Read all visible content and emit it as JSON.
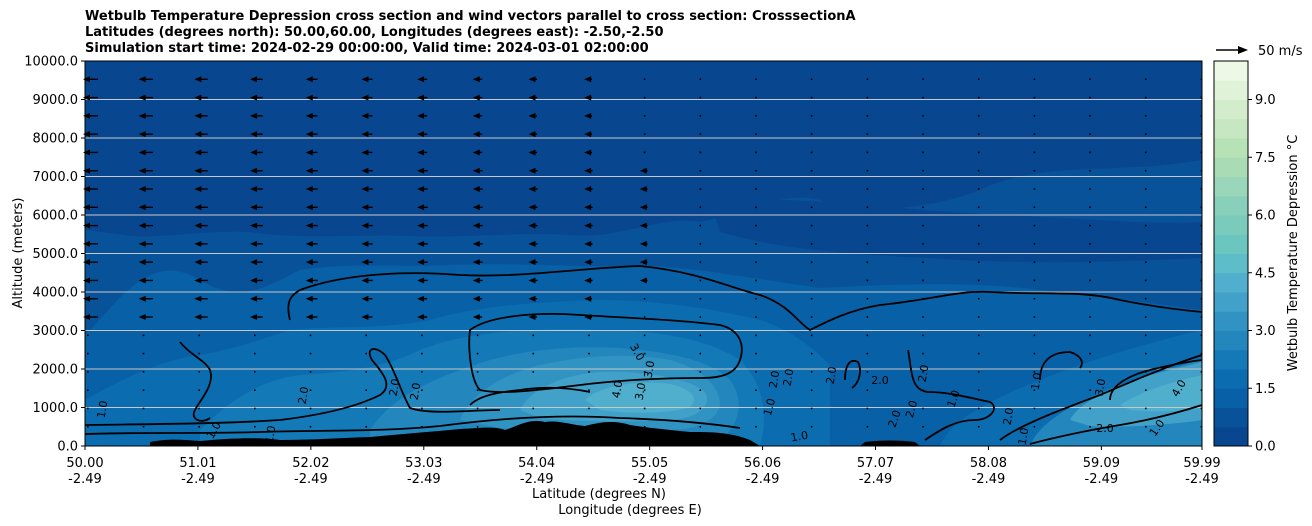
{
  "titles": {
    "line1": "Wetbulb Temperature Depression cross section and wind vectors parallel to cross section: CrosssectionA",
    "line2": "Latitudes (degrees north): 50.00,60.00, Longitudes (degrees east): -2.50,-2.50",
    "line3": "Simulation start time: 2024-02-29 00:00:00, Valid time: 2024-03-01 02:00:00"
  },
  "chart_data": {
    "type": "heatmap",
    "subtype": "filled contour cross section with line contours and wind vectors",
    "ylabel": "Altitude (meters)",
    "xlabel_line1": "Latitude (degrees N)",
    "xlabel_line2": "Longitude (degrees E)",
    "ylim": [
      0,
      10000
    ],
    "xlim": [
      50.0,
      59.99
    ],
    "y_ticks": [
      0,
      1000,
      2000,
      3000,
      4000,
      5000,
      6000,
      7000,
      8000,
      9000,
      10000
    ],
    "y_tick_labels": [
      "0.0",
      "1000.0",
      "2000.0",
      "3000.0",
      "4000.0",
      "5000.0",
      "6000.0",
      "7000.0",
      "8000.0",
      "9000.0",
      "10000.0"
    ],
    "x_ticks": [
      50.0,
      51.01,
      52.02,
      53.03,
      54.04,
      55.05,
      56.06,
      57.07,
      58.08,
      59.09,
      59.99
    ],
    "x_tick_labels_lat": [
      "50.00",
      "51.01",
      "52.02",
      "53.03",
      "54.04",
      "55.05",
      "56.06",
      "57.07",
      "58.08",
      "59.09",
      "59.99"
    ],
    "x_tick_labels_lon": [
      "-2.49",
      "-2.49",
      "-2.49",
      "-2.49",
      "-2.49",
      "-2.49",
      "-2.49",
      "-2.49",
      "-2.49",
      "-2.49",
      "-2.49"
    ],
    "horizontal_grid": true,
    "colorbar": {
      "label": "Wetbulb Temperature Depression °C",
      "min": 0.0,
      "max": 10.0,
      "levels": 20,
      "tick_values": [
        0.0,
        1.5,
        3.0,
        4.5,
        6.0,
        7.5,
        9.0
      ],
      "tick_labels": [
        "0.0",
        "1.5",
        "3.0",
        "4.5",
        "6.0",
        "7.5",
        "9.0"
      ],
      "colors": [
        "#08478f",
        "#08529a",
        "#0860a6",
        "#0b6db0",
        "#1479b7",
        "#2386bd",
        "#3193c2",
        "#42a1c8",
        "#4fafcd",
        "#5dbdc8",
        "#6cc6c0",
        "#7bcbbd",
        "#89d0ba",
        "#9ad6ba",
        "#a9dcb5",
        "#b7e2b6",
        "#c6e7c1",
        "#d3edcc",
        "#e0f3d9",
        "#edf8e6"
      ]
    },
    "contour_line_labels": [
      "1.0",
      "1.0",
      "1.0",
      "1.0",
      "1.0",
      "1.0",
      "1.0",
      "1.0",
      "1.0",
      "2.0",
      "2.0",
      "2.0",
      "2.0",
      "2.0",
      "2.0",
      "2.0",
      "2.0",
      "2.0",
      "2.0",
      "2.0",
      "2.0",
      "3.0",
      "3.0",
      "3.0",
      "3.0",
      "4.0",
      "4.0"
    ],
    "wind_vector_key": "50 m/s",
    "approx_field_summary": [
      {
        "region": "upper troposphere 5000-10000 m",
        "value_range": [
          0.0,
          1.0
        ]
      },
      {
        "region": "mid levels 2000-4500 m",
        "value_range": [
          1.0,
          2.0
        ]
      },
      {
        "region": "lower dry pocket lat 53.5-55.7, 700-2600 m",
        "value_range": [
          2.0,
          4.5
        ]
      },
      {
        "region": "lower dry pocket lat 59.0-60.0, 800-2500 m",
        "value_range": [
          2.5,
          4.5
        ]
      }
    ]
  },
  "colors": {
    "terrain": "#000000",
    "contour_lines": "#000000",
    "grid": "#c8c8c8"
  }
}
